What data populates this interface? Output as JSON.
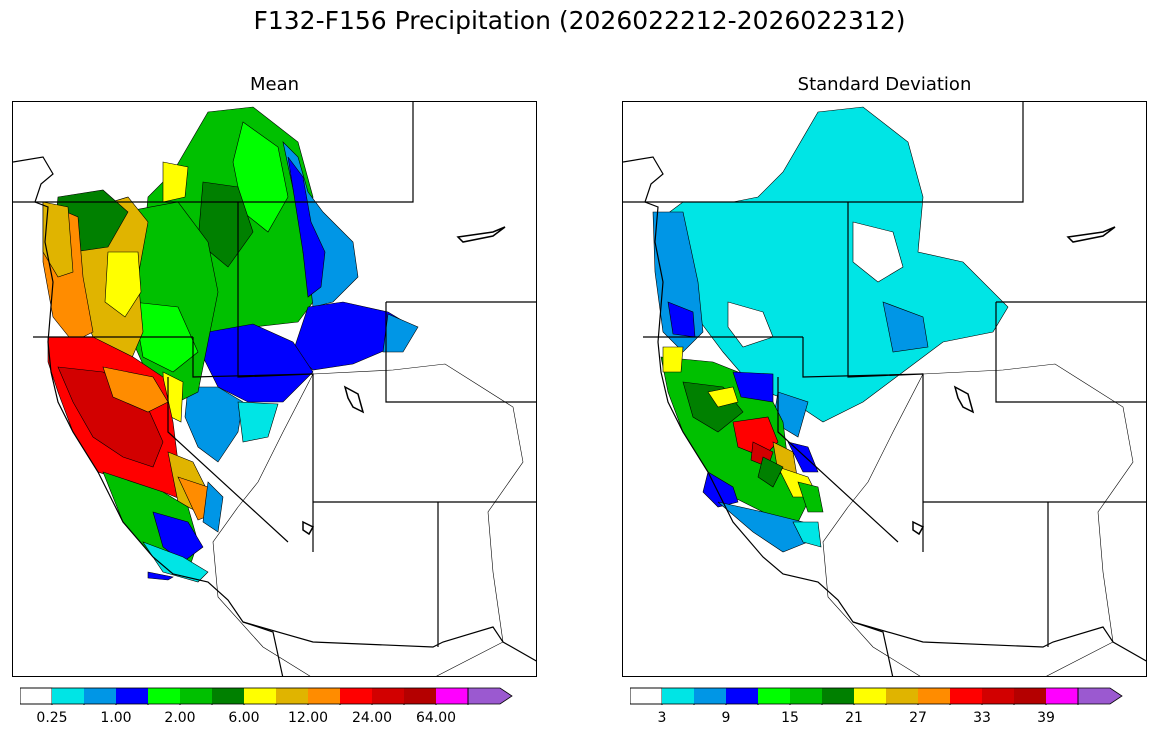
{
  "title": "F132-F156 Precipitation (2026022212-2026022312)",
  "panels": [
    {
      "title": "Mean",
      "colorbar": {
        "colors": [
          "#ffffff",
          "#00e5e5",
          "#0096e6",
          "#0000ff",
          "#00ff00",
          "#00c000",
          "#008000",
          "#ffff00",
          "#e0b400",
          "#ff8c00",
          "#ff0000",
          "#d20000",
          "#b40000",
          "#ff00ff",
          "#9b59d0"
        ],
        "tick_labels": [
          "0.25",
          "1.00",
          "2.00",
          "6.00",
          "12.00",
          "24.00",
          "64.00"
        ]
      }
    },
    {
      "title": "Standard Deviation",
      "colorbar": {
        "colors": [
          "#ffffff",
          "#00e5e5",
          "#0096e6",
          "#0000ff",
          "#00ff00",
          "#00c000",
          "#008000",
          "#ffff00",
          "#e0b400",
          "#ff8c00",
          "#ff0000",
          "#d20000",
          "#b40000",
          "#ff00ff",
          "#9b59d0"
        ],
        "tick_labels": [
          "3",
          "9",
          "15",
          "21",
          "27",
          "33",
          "39"
        ]
      }
    }
  ]
}
